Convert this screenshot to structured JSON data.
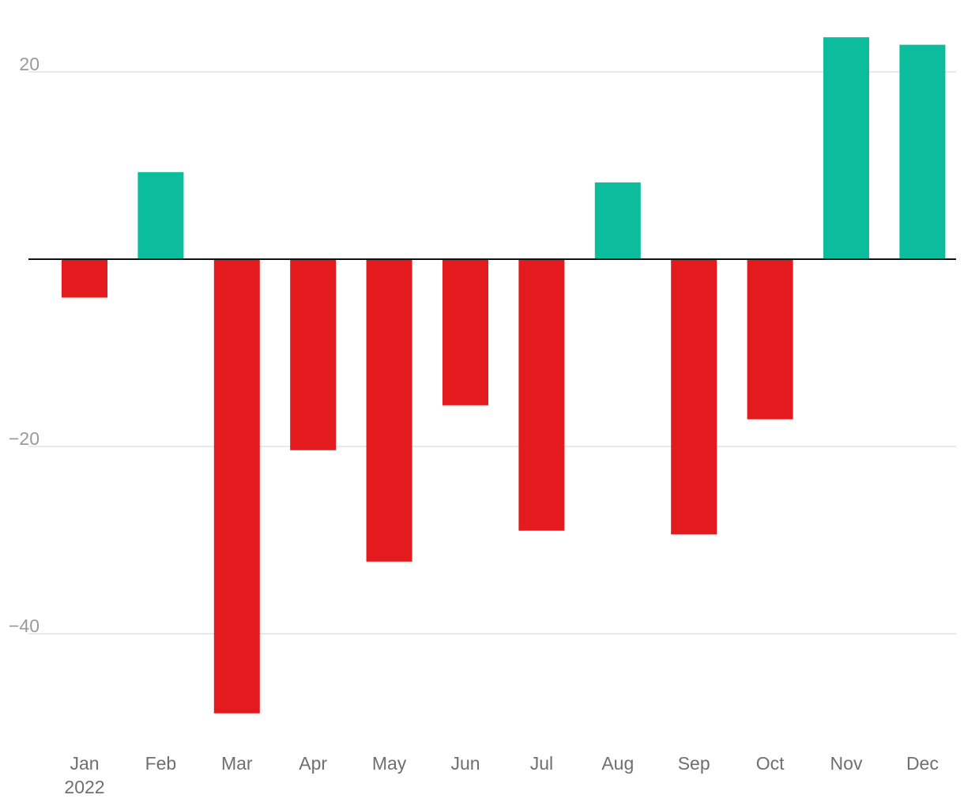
{
  "chart_data": {
    "type": "bar",
    "categories": [
      "Jan",
      "Feb",
      "Mar",
      "Apr",
      "May",
      "Jun",
      "Jul",
      "Aug",
      "Sep",
      "Oct",
      "Nov",
      "Dec"
    ],
    "x_secondary_label": "2022",
    "values": [
      -4.1,
      9.3,
      -48.5,
      -20.4,
      -32.3,
      -15.6,
      -29.0,
      8.2,
      -29.4,
      -17.1,
      23.7,
      22.9
    ],
    "ylim": [
      -52,
      27
    ],
    "yticks": [
      20,
      0,
      -20,
      -40
    ],
    "ytick_labels": [
      "20",
      "",
      "−20",
      "−40"
    ],
    "title": "",
    "xlabel": "",
    "ylabel": "",
    "grid": true,
    "colors": {
      "positive": "#0bbd9d",
      "negative": "#e31b1e",
      "zero_line": "#111111",
      "grid": "#e2e2e2"
    }
  }
}
